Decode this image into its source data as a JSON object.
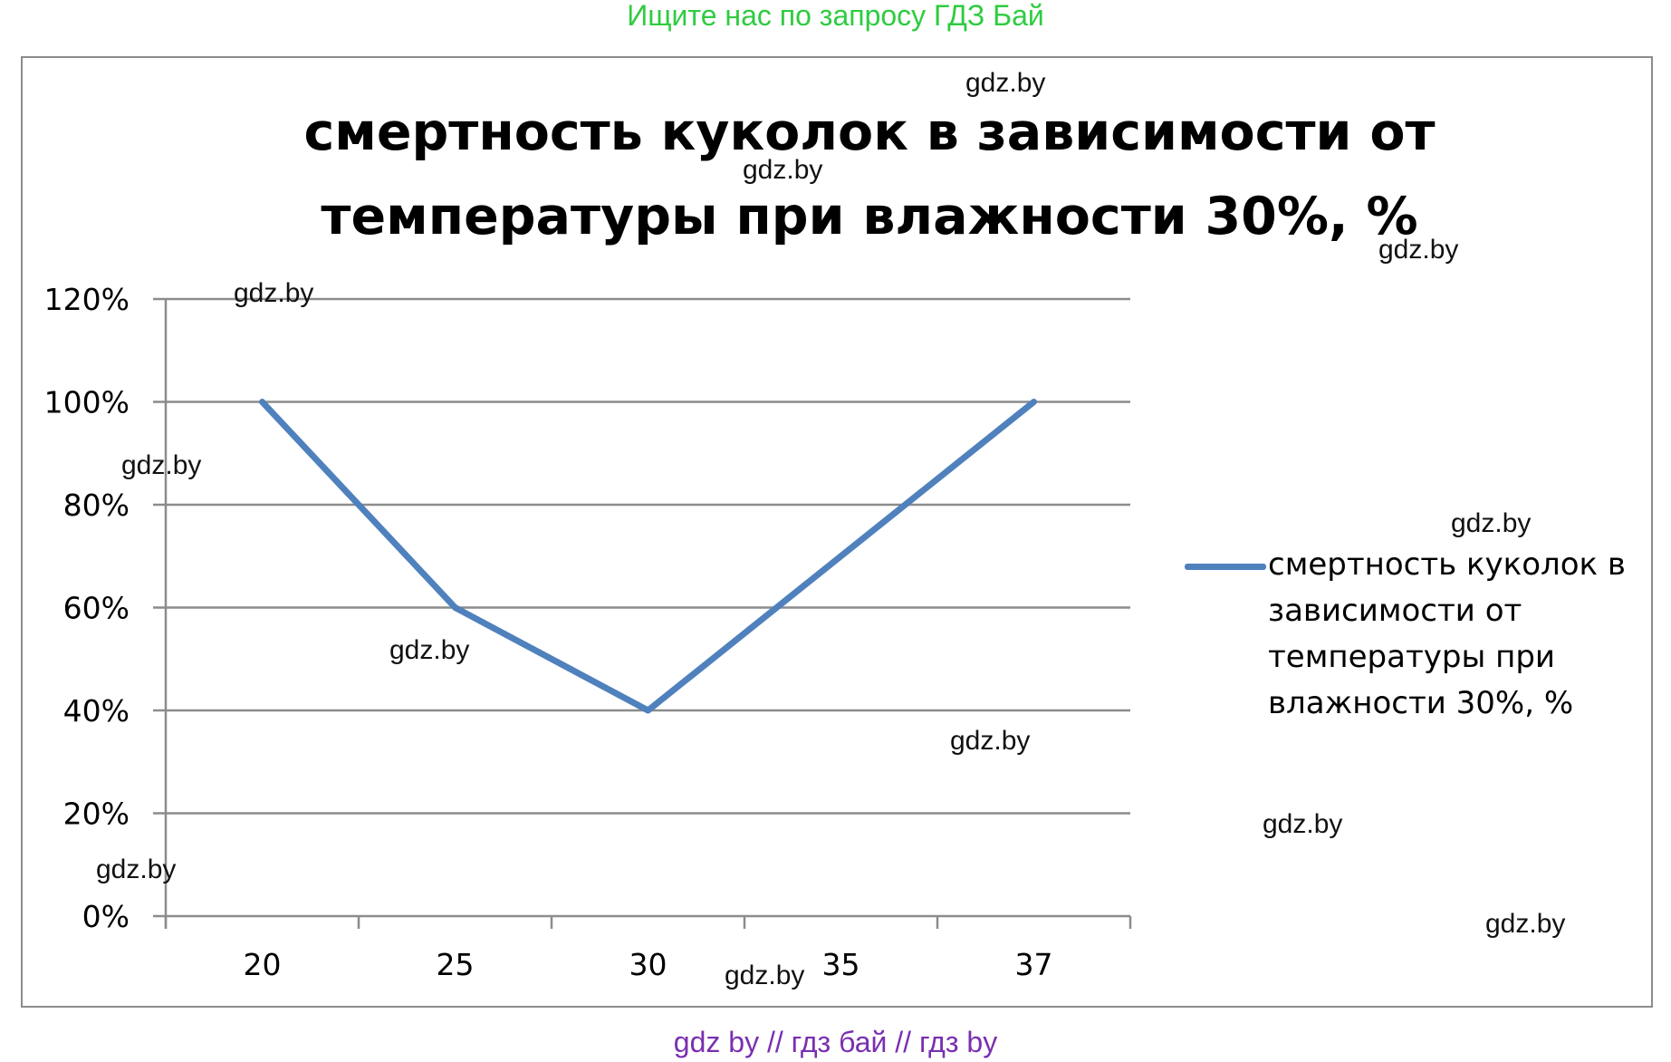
{
  "banner_top": "Ищите нас по запросу ГДЗ Бай",
  "banner_bottom": "gdz by  //  гдз бай  //  гдз by",
  "watermark": "gdz.by",
  "colors": {
    "series": "#4f81bd",
    "grid": "#8c8c8c",
    "banner_top": "#2ecc40",
    "banner_bottom": "#7a2fb0"
  },
  "chart_data": {
    "type": "line",
    "title_lines": [
      "смертность куколок в зависимости от",
      "температуры при влажности 30%, %"
    ],
    "categories": [
      "20",
      "25",
      "30",
      "35",
      "37"
    ],
    "series": [
      {
        "name": "смертность куколок в зависимости от температуры при влажности 30%, %",
        "points": [
          {
            "x": "20",
            "y": 100
          },
          {
            "x": "25",
            "y": 60
          },
          {
            "x": "30",
            "y": 40
          },
          {
            "x": "37",
            "y": 100
          }
        ]
      }
    ],
    "y_ticks": [
      "0%",
      "20%",
      "40%",
      "60%",
      "80%",
      "100%",
      "120%"
    ],
    "y_tick_values": [
      0,
      20,
      40,
      60,
      80,
      100,
      120
    ],
    "ylim": [
      0,
      120
    ],
    "grid": true,
    "legend_position": "right"
  }
}
